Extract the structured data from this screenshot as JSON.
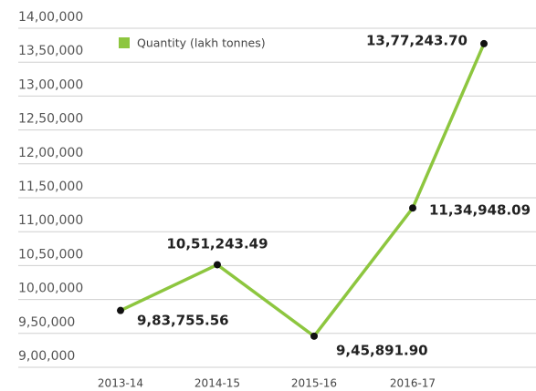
{
  "chart_data": {
    "type": "line",
    "categories": [
      "2013-14",
      "2014-15",
      "2015-16",
      "2016-17",
      null
    ],
    "series": [
      {
        "name": "Quantity (lakh tonnes)",
        "color": "#8dc63f",
        "values": [
          983755.56,
          1051243.49,
          945891.9,
          1134948.09,
          1377243.7
        ],
        "value_labels": [
          "9,83,755.56",
          "10,51,243.49",
          "9,45,891.90",
          "11,34,948.09",
          "13,77,243.70"
        ]
      }
    ],
    "ylim": [
      900000,
      1400000
    ],
    "yticks": [
      {
        "value": 900000,
        "label": "9,00,000"
      },
      {
        "value": 950000,
        "label": "9,50,000"
      },
      {
        "value": 1000000,
        "label": "10,00,000"
      },
      {
        "value": 1050000,
        "label": "10,50,000"
      },
      {
        "value": 1100000,
        "label": "11,00,000"
      },
      {
        "value": 1150000,
        "label": "11,50,000"
      },
      {
        "value": 1200000,
        "label": "12,00,000"
      },
      {
        "value": 1250000,
        "label": "12,50,000"
      },
      {
        "value": 1300000,
        "label": "13,00,000"
      },
      {
        "value": 1350000,
        "label": "13,50,000"
      },
      {
        "value": 1400000,
        "label": "14,00,000"
      }
    ],
    "grid": true
  }
}
